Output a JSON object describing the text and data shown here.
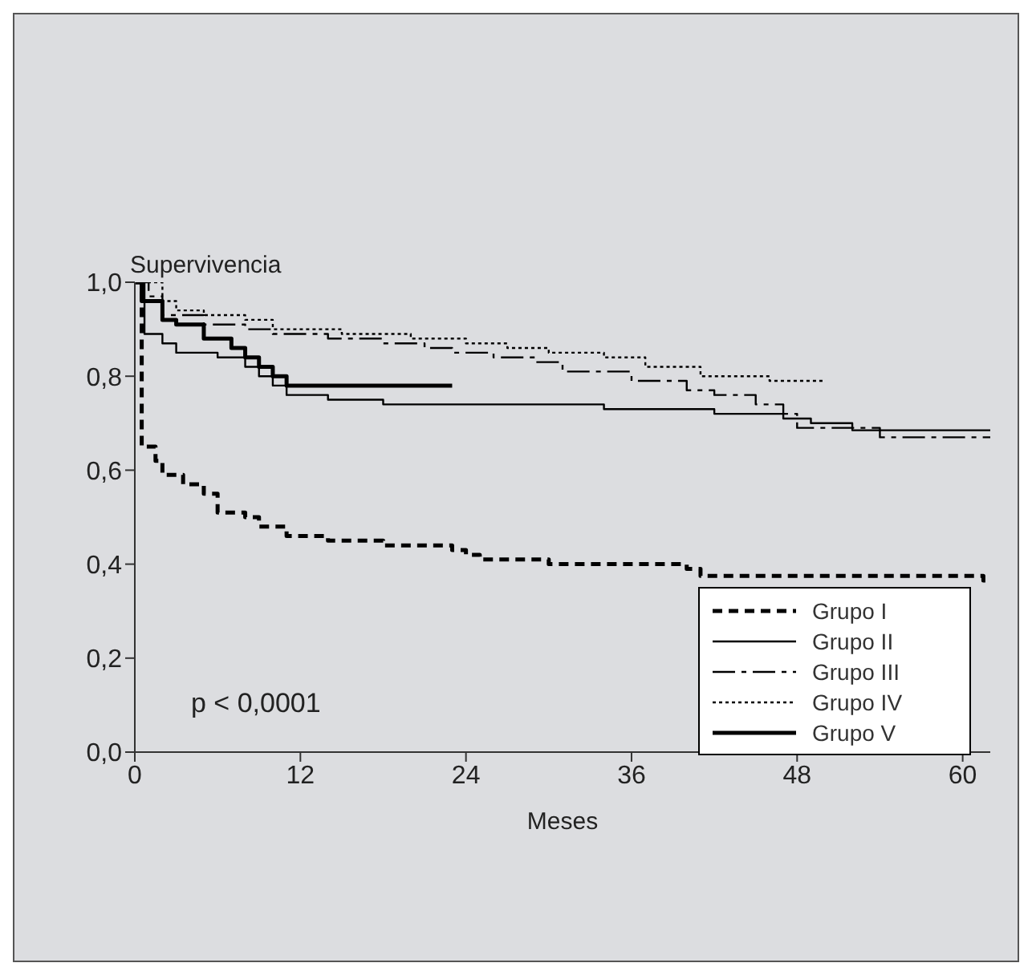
{
  "chart_data": {
    "type": "step",
    "ylabel": "Supervivencia",
    "xlabel": "Meses",
    "annotations": [
      "p < 0,0001"
    ],
    "xlim": [
      0,
      62
    ],
    "xticks": [
      0,
      12,
      24,
      36,
      48,
      60
    ],
    "ylim": [
      0,
      1
    ],
    "yticks": [
      {
        "value": 0,
        "label": "0,0"
      },
      {
        "value": 0.2,
        "label": "0,2"
      },
      {
        "value": 0.4,
        "label": "0,4"
      },
      {
        "value": 0.6,
        "label": "0,6"
      },
      {
        "value": 0.8,
        "label": "0,8"
      },
      {
        "value": 1,
        "label": "1,0"
      }
    ],
    "legend": "bottom right",
    "marker": "none",
    "series": [
      {
        "name": "Grupo I",
        "color": "#000000",
        "line_style": "dashed",
        "x": [
          0,
          0.5,
          1.5,
          2,
          3.5,
          5,
          6,
          8,
          9,
          11,
          14,
          18,
          23,
          24,
          25,
          30,
          40,
          41,
          61.5,
          62
        ],
        "values": [
          1,
          0.65,
          0.62,
          0.59,
          0.57,
          0.55,
          0.51,
          0.5,
          0.48,
          0.46,
          0.45,
          0.44,
          0.43,
          0.42,
          0.41,
          0.4,
          0.39,
          0.375,
          0.365,
          0.365
        ]
      },
      {
        "name": "Grupo II",
        "color": "#000000",
        "line_style": "solid",
        "x": [
          0,
          0.7,
          2,
          3,
          6,
          8,
          9,
          10,
          11,
          14,
          18,
          34,
          42,
          47,
          49,
          52,
          62
        ],
        "values": [
          1,
          0.89,
          0.87,
          0.85,
          0.84,
          0.82,
          0.8,
          0.78,
          0.76,
          0.75,
          0.74,
          0.73,
          0.72,
          0.71,
          0.7,
          0.685,
          0.685
        ]
      },
      {
        "name": "Grupo III",
        "color": "#000000",
        "line_style": "dashdot",
        "x": [
          0,
          1,
          2,
          5,
          8,
          10,
          14,
          18,
          21,
          23,
          26,
          29,
          31,
          36,
          40,
          42,
          45,
          47,
          48,
          54,
          62
        ],
        "values": [
          1,
          0.97,
          0.93,
          0.91,
          0.9,
          0.89,
          0.88,
          0.87,
          0.86,
          0.85,
          0.84,
          0.83,
          0.81,
          0.79,
          0.77,
          0.76,
          0.74,
          0.72,
          0.69,
          0.67,
          0.67
        ]
      },
      {
        "name": "Grupo IV",
        "color": "#000000",
        "line_style": "dotted",
        "x": [
          0,
          2,
          3,
          5,
          8,
          10,
          15,
          20,
          24,
          27,
          30,
          34,
          37,
          41,
          46,
          50
        ],
        "values": [
          1,
          0.96,
          0.94,
          0.93,
          0.92,
          0.9,
          0.89,
          0.88,
          0.87,
          0.86,
          0.85,
          0.84,
          0.82,
          0.8,
          0.79,
          0.79
        ]
      },
      {
        "name": "Grupo V",
        "color": "#000000",
        "line_style": "solid",
        "x": [
          0,
          0.5,
          2,
          3,
          5,
          7,
          8,
          9,
          10,
          11,
          23
        ],
        "values": [
          1,
          0.96,
          0.92,
          0.91,
          0.88,
          0.86,
          0.84,
          0.82,
          0.8,
          0.78,
          0.78
        ]
      }
    ]
  }
}
